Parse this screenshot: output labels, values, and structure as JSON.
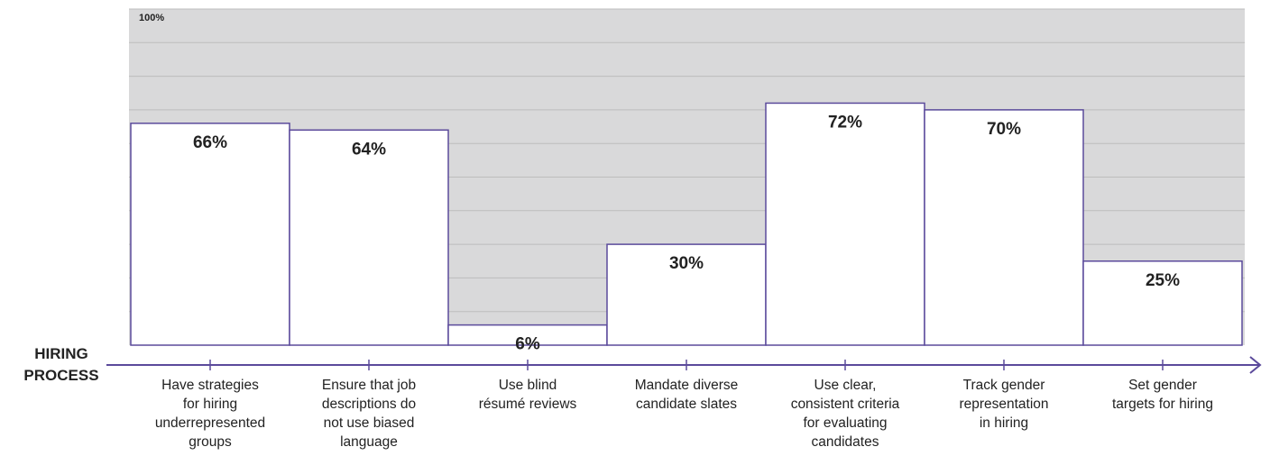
{
  "chart_data": {
    "type": "bar",
    "x_axis_label": "HIRING\nPROCESS",
    "categories": [
      "Have strategies\nfor hiring\nunderrepresented\ngroups",
      "Ensure that job\ndescriptions do\nnot use biased\nlanguage",
      "Use blind\nrésumé reviews",
      "Mandate diverse\ncandidate slates",
      "Use clear,\nconsistent criteria\nfor evaluating\ncandidates",
      "Track gender\nrepresentation\nin hiring",
      "Set gender\ntargets for hiring"
    ],
    "values": [
      66,
      64,
      6,
      30,
      72,
      70,
      25
    ],
    "value_labels": [
      "66%",
      "64%",
      "6%",
      "30%",
      "72%",
      "70%",
      "25%"
    ],
    "color": "#ffffff",
    "edge_color": "#5b4a9b",
    "ylim": [
      0,
      100
    ],
    "yticks": [
      {
        "value": 100,
        "label": "100%"
      }
    ],
    "grid_lines": [
      10,
      20,
      30,
      40,
      50,
      60,
      70,
      80,
      90
    ],
    "grid": true
  }
}
